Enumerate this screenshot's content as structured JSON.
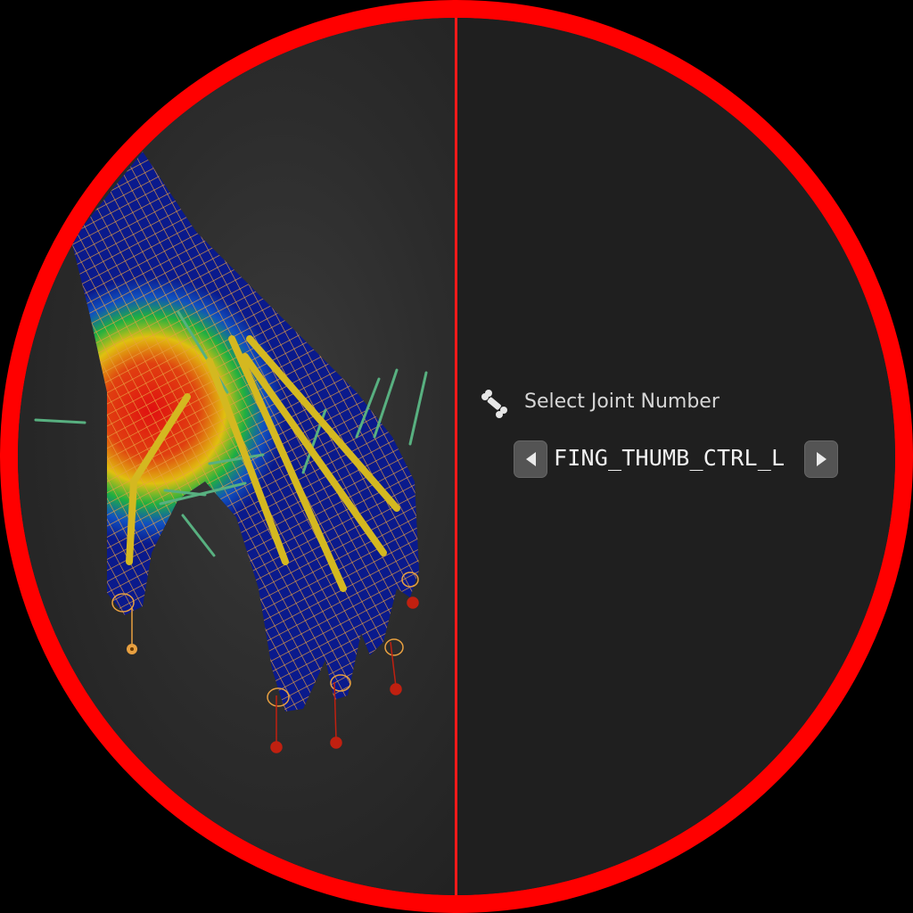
{
  "joint_selector": {
    "label": "Select Joint Number",
    "value": "FING_THUMB_CTRL_L",
    "icon": "bone-icon",
    "prev_icon": "triangle-left-icon",
    "next_icon": "triangle-right-icon"
  },
  "colors": {
    "frame": "#ff0000",
    "divider": "#ff1a1a",
    "panel_bg": "#1f1f1f",
    "wireframe": "#e8a040",
    "bone": "#d4b820",
    "weight_low": "#0a1a8c",
    "weight_high": "#e01010"
  }
}
